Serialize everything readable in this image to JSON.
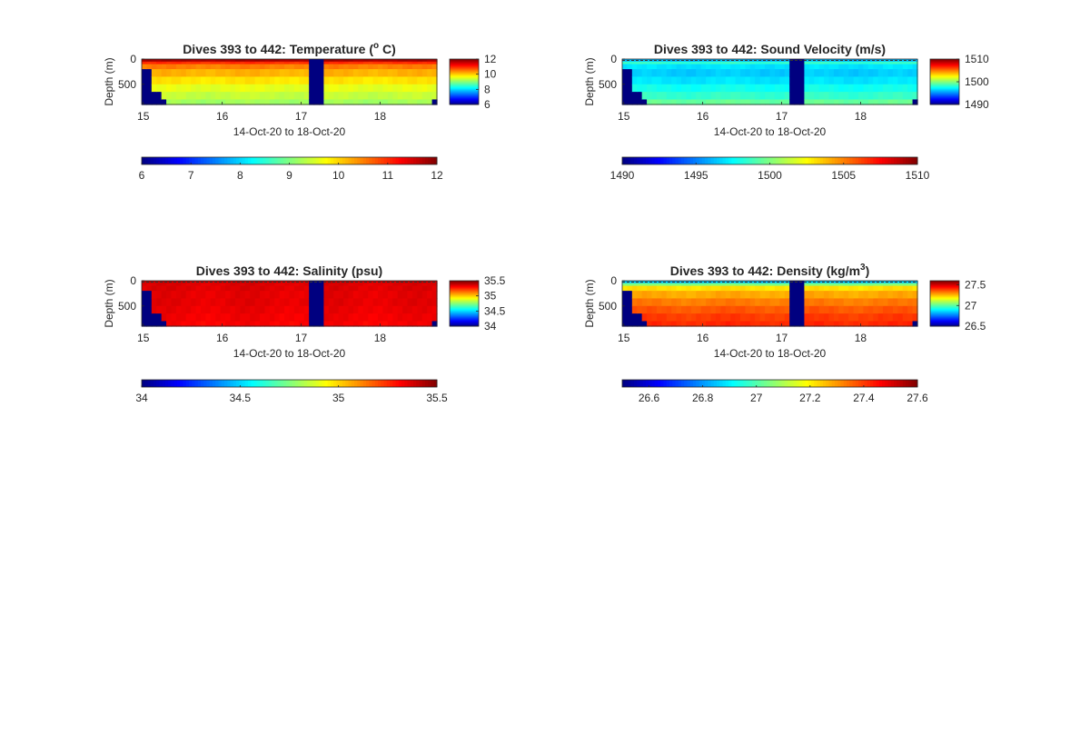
{
  "figure": {
    "background": "#ffffff"
  },
  "colormap": "jet",
  "chart_data": [
    {
      "type": "heatmap",
      "title_main": "Dives 393 to 442: Temperature (",
      "title_sup": "o",
      "title_tail": " C)",
      "xlabel": "14-Oct-20 to 18-Oct-20",
      "ylabel": "Depth (m)",
      "xlim": [
        14.98,
        18.72
      ],
      "ylim": [
        0,
        900
      ],
      "xticks": [
        15,
        16,
        17,
        18
      ],
      "yticks": [
        0,
        500
      ],
      "clim": [
        6,
        12
      ],
      "colorbar_ticks": [
        12,
        10,
        8,
        6
      ],
      "h_colorbar_ticks": [
        6,
        7,
        8,
        9,
        10,
        11,
        12
      ],
      "rows_depth": [
        0,
        50,
        100,
        200,
        350,
        500,
        650,
        800
      ],
      "rows_value": [
        11.8,
        11.0,
        10.5,
        10.2,
        9.9,
        9.6,
        9.4,
        9.2
      ],
      "no_data_value": 6.0,
      "gaps": [
        [
          17.13,
          17.26
        ]
      ],
      "near_surface_dashed": false
    },
    {
      "type": "heatmap",
      "title_main": "Dives 393 to 442: Sound Velocity (m/s)",
      "xlabel": "14-Oct-20 to 18-Oct-20",
      "ylabel": "Depth (m)",
      "xlim": [
        14.98,
        18.72
      ],
      "ylim": [
        0,
        900
      ],
      "xticks": [
        15,
        16,
        17,
        18
      ],
      "yticks": [
        0,
        500
      ],
      "clim": [
        1490,
        1510
      ],
      "colorbar_ticks": [
        1510,
        1500,
        1490
      ],
      "h_colorbar_ticks": [
        1490,
        1495,
        1500,
        1505,
        1510
      ],
      "rows_depth": [
        0,
        50,
        100,
        200,
        350,
        500,
        650,
        800
      ],
      "rows_value": [
        1496.0,
        1498.5,
        1497.0,
        1496.5,
        1497.0,
        1497.8,
        1498.5,
        1499.5
      ],
      "no_data_value": 1490.0,
      "gaps": [
        [
          17.13,
          17.26
        ]
      ],
      "near_surface_dashed": true
    },
    {
      "type": "heatmap",
      "title_main": "Dives 393 to 442: Salinity (psu)",
      "xlabel": "14-Oct-20 to 18-Oct-20",
      "ylabel": "Depth (m)",
      "xlim": [
        14.98,
        18.72
      ],
      "ylim": [
        0,
        900
      ],
      "xticks": [
        15,
        16,
        17,
        18
      ],
      "yticks": [
        0,
        500
      ],
      "clim": [
        34,
        35.5
      ],
      "colorbar_ticks": [
        35.5,
        35,
        34.5,
        34
      ],
      "h_colorbar_ticks": [
        34,
        34.5,
        35,
        35.5
      ],
      "rows_depth": [
        0,
        50,
        100,
        200,
        350,
        500,
        650,
        800
      ],
      "rows_value": [
        35.38,
        35.36,
        35.36,
        35.35,
        35.35,
        35.34,
        35.33,
        35.32
      ],
      "no_data_value": 34.0,
      "gaps": [
        [
          17.13,
          17.26
        ]
      ],
      "near_surface_dashed": true
    },
    {
      "type": "heatmap",
      "title_main": "Dives 393 to 442: Density (kg/m",
      "title_sup": "3",
      "title_tail": ")",
      "xlabel": "14-Oct-20 to 18-Oct-20",
      "ylabel": "Depth (m)",
      "xlim": [
        14.98,
        18.72
      ],
      "ylim": [
        0,
        900
      ],
      "xticks": [
        15,
        16,
        17,
        18
      ],
      "yticks": [
        0,
        500
      ],
      "clim": [
        26.5,
        27.6
      ],
      "colorbar_ticks": [
        27.5,
        27,
        26.5
      ],
      "h_colorbar_ticks": [
        26.6,
        26.8,
        27,
        27.2,
        27.4,
        27.6
      ],
      "rows_depth": [
        0,
        50,
        100,
        200,
        350,
        500,
        650,
        800
      ],
      "rows_value": [
        26.85,
        27.05,
        27.22,
        27.28,
        27.33,
        27.37,
        27.4,
        27.42
      ],
      "no_data_value": 26.5,
      "gaps": [
        [
          17.13,
          17.26
        ]
      ],
      "near_surface_dashed": true
    }
  ]
}
